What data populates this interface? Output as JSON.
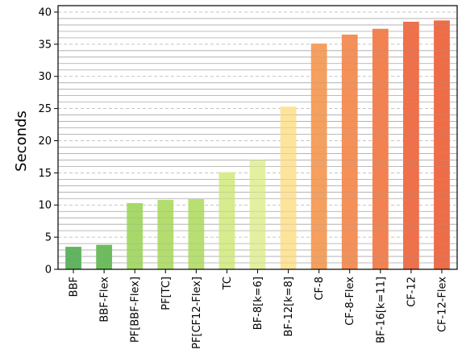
{
  "chart_data": {
    "type": "bar",
    "title": "",
    "xlabel": "",
    "ylabel": "Seconds",
    "ylim": [
      0,
      41
    ],
    "yticks": [
      0,
      5,
      10,
      15,
      20,
      25,
      30,
      35,
      40
    ],
    "grid": {
      "major": "dashed",
      "minor": "solid",
      "minor_step": 1
    },
    "categories": [
      "BBF",
      "BBF-Flex",
      "PF[BBF-Flex]",
      "PF[TC]",
      "PF[CF12-Flex]",
      "TC",
      "BF-8[k=6]",
      "BF-12[k=8]",
      "CF-8",
      "CF-8-Flex",
      "BF-16[k=11]",
      "CF-12",
      "CF-12-Flex"
    ],
    "values": [
      3.5,
      3.8,
      10.3,
      10.8,
      10.9,
      15.1,
      17.0,
      25.3,
      35.1,
      36.5,
      37.4,
      38.5,
      38.7
    ],
    "colors": [
      "#5fb55f",
      "#6cbd5c",
      "#a6d96a",
      "#b3dd6e",
      "#b8df72",
      "#d6ec8d",
      "#e4f0a0",
      "#fde49a",
      "#f5a05e",
      "#f49058",
      "#f28252",
      "#ef704a",
      "#ee6d48"
    ]
  }
}
